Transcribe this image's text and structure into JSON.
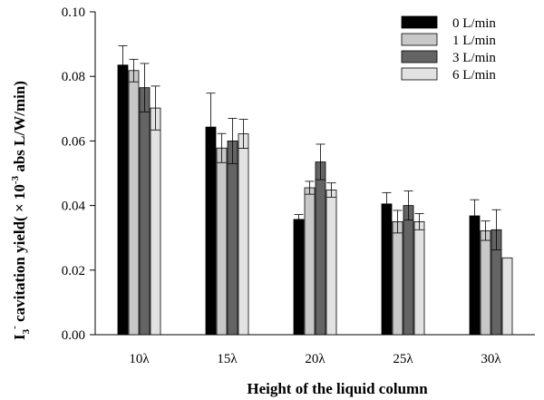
{
  "chart_data": {
    "type": "bar",
    "xlabel": "Height of the liquid column",
    "ylabel": {
      "prefix": "I",
      "sub": "3",
      "sup": "-",
      "middle": " cavitation yield( × 10",
      "exp": "-3",
      "suffix": " abs L/W/min)"
    },
    "categories": [
      "10λ",
      "15λ",
      "20λ",
      "25λ",
      "30λ"
    ],
    "ylim": [
      0,
      0.1
    ],
    "yticks": [
      "0.00",
      "0.02",
      "0.04",
      "0.06",
      "0.08",
      "0.10"
    ],
    "grid": false,
    "legend_position": "top-right",
    "series": [
      {
        "name": "0 L/min",
        "color": "#000000",
        "values": [
          0.0835,
          0.0643,
          0.0357,
          0.0405,
          0.0368
        ],
        "errors": [
          0.006,
          0.0105,
          0.0015,
          0.0035,
          0.005
        ]
      },
      {
        "name": "1 L/min",
        "color": "#c8c8c8",
        "values": [
          0.0818,
          0.0578,
          0.0455,
          0.035,
          0.0322
        ],
        "errors": [
          0.0035,
          0.0045,
          0.002,
          0.0035,
          0.003
        ]
      },
      {
        "name": "3 L/min",
        "color": "#646464",
        "values": [
          0.0765,
          0.06,
          0.0535,
          0.04,
          0.0325
        ],
        "errors": [
          0.0075,
          0.007,
          0.0055,
          0.0045,
          0.0062
        ]
      },
      {
        "name": "6 L/min",
        "color": "#e2e2e2",
        "values": [
          0.0702,
          0.0622,
          0.0448,
          0.035,
          0.0238
        ],
        "errors": [
          0.0068,
          0.0045,
          0.0022,
          0.0025,
          0
        ]
      }
    ]
  }
}
